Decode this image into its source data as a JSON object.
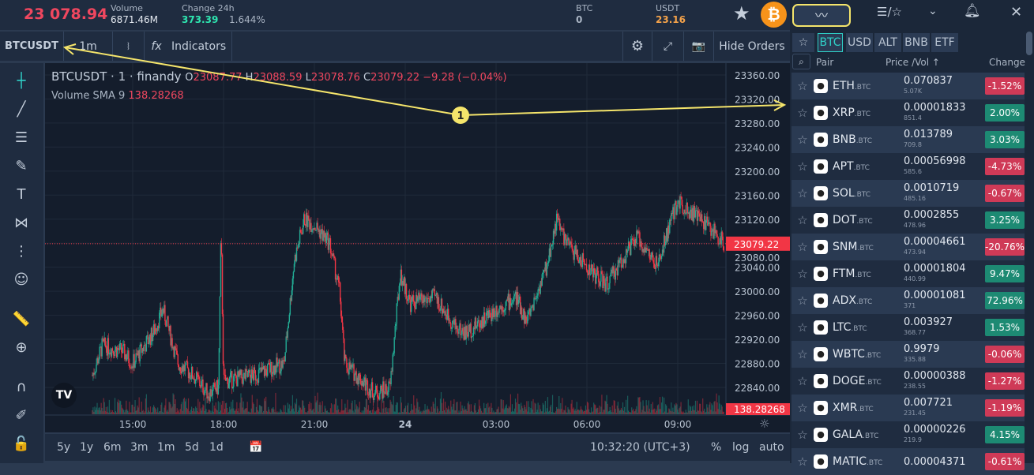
{
  "header": {
    "last_price": "23 078.94",
    "volume_label": "Volume",
    "volume": "6871.46M",
    "change_label": "Change 24h",
    "change_abs": "373.39",
    "change_pct": "1.644%",
    "btc_label": "BTC",
    "btc_balance": "0",
    "usdt_label": "USDT",
    "usdt_balance": "23.16"
  },
  "toolbar": {
    "symbol": "BTCUSDT",
    "interval": "1m",
    "indicators": "Indicators",
    "hide_orders": "Hide Orders"
  },
  "legend": {
    "title": "BTCUSDT · 1 · finandy",
    "o_label": "O",
    "o": "23087.77",
    "h_label": "H",
    "h": "23088.59",
    "l_label": "L",
    "l": "23078.76",
    "c_label": "C",
    "c": "23079.22",
    "chg": "−9.28 (−0.04%)",
    "vol_label": "Volume",
    "sma_label": "SMA 9",
    "vol_value": "138.28268"
  },
  "price_axis": [
    "23360.00",
    "23320.00",
    "23280.00",
    "23240.00",
    "23200.00",
    "23160.00",
    "23120.00",
    "23080.00",
    "23040.00",
    "23000.00",
    "22960.00",
    "22920.00",
    "22880.00",
    "22840.00"
  ],
  "price_tag": "23079.22",
  "volume_tag": "138.28268",
  "time_axis": [
    "15:00",
    "18:00",
    "21:00",
    "24",
    "03:00",
    "06:00",
    "09:00"
  ],
  "ranges": [
    "5y",
    "1y",
    "6m",
    "3m",
    "1m",
    "5d",
    "1d"
  ],
  "clock": "10:32:20 (UTC+3)",
  "scale_opts": [
    "%",
    "log",
    "auto"
  ],
  "annotation": {
    "marker": "1",
    "color": "#f5e56b"
  },
  "chart_data": {
    "type": "candlestick",
    "symbol": "BTCUSDT",
    "interval": "1m",
    "ylim": [
      22820,
      23370
    ],
    "price_path": [
      [
        "13:40",
        22860
      ],
      [
        "14:00",
        22910
      ],
      [
        "14:40",
        22900
      ],
      [
        "15:00",
        22880
      ],
      [
        "15:40",
        22930
      ],
      [
        "16:00",
        22970
      ],
      [
        "16:30",
        22880
      ],
      [
        "17:00",
        22860
      ],
      [
        "17:30",
        22830
      ],
      [
        "17:50",
        22840
      ],
      [
        "17:55",
        23100
      ],
      [
        "18:00",
        22850
      ],
      [
        "19:00",
        22860
      ],
      [
        "20:00",
        22880
      ],
      [
        "20:20",
        23050
      ],
      [
        "20:40",
        23120
      ],
      [
        "21:00",
        23110
      ],
      [
        "21:30",
        23080
      ],
      [
        "21:50",
        23000
      ],
      [
        "22:00",
        22880
      ],
      [
        "23:00",
        22830
      ],
      [
        "23:30",
        22840
      ],
      [
        "23:50",
        23030
      ],
      [
        "00:10",
        22980
      ],
      [
        "01:00",
        22990
      ],
      [
        "01:40",
        22940
      ],
      [
        "02:00",
        22930
      ],
      [
        "03:00",
        22970
      ],
      [
        "03:40",
        22990
      ],
      [
        "04:00",
        22950
      ],
      [
        "04:40",
        23040
      ],
      [
        "05:00",
        23120
      ],
      [
        "05:20",
        23080
      ],
      [
        "06:00",
        23040
      ],
      [
        "06:40",
        23010
      ],
      [
        "07:00",
        23040
      ],
      [
        "07:40",
        23090
      ],
      [
        "08:20",
        23040
      ],
      [
        "08:40",
        23100
      ],
      [
        "09:00",
        23150
      ],
      [
        "09:30",
        23130
      ],
      [
        "10:00",
        23110
      ],
      [
        "10:32",
        23079
      ]
    ],
    "last": 23079.22
  },
  "panel": {
    "tabs": [
      "BTC",
      "USD",
      "ALT",
      "BNB",
      "ETF"
    ],
    "col_pair": "Pair",
    "col_price": "Price /Vol ↑",
    "col_change": "Change",
    "quote": ".BTC",
    "rows": [
      {
        "sym": "ETH",
        "price": "0.070837",
        "vol": "5.07K",
        "chg": "-1.52%",
        "up": false
      },
      {
        "sym": "XRP",
        "price": "0.00001833",
        "vol": "851.4",
        "chg": "2.00%",
        "up": true
      },
      {
        "sym": "BNB",
        "price": "0.013789",
        "vol": "709.8",
        "chg": "3.03%",
        "up": true
      },
      {
        "sym": "APT",
        "price": "0.00056998",
        "vol": "585.6",
        "chg": "-4.73%",
        "up": false
      },
      {
        "sym": "SOL",
        "price": "0.0010719",
        "vol": "485.16",
        "chg": "-0.67%",
        "up": false
      },
      {
        "sym": "DOT",
        "price": "0.0002855",
        "vol": "478.96",
        "chg": "3.25%",
        "up": true
      },
      {
        "sym": "SNM",
        "price": "0.00004661",
        "vol": "473.94",
        "chg": "-20.76%",
        "up": false
      },
      {
        "sym": "FTM",
        "price": "0.00001804",
        "vol": "440.99",
        "chg": "9.47%",
        "up": true
      },
      {
        "sym": "ADX",
        "price": "0.00001081",
        "vol": "371",
        "chg": "72.96%",
        "up": true
      },
      {
        "sym": "LTC",
        "price": "0.003927",
        "vol": "368.77",
        "chg": "1.53%",
        "up": true
      },
      {
        "sym": "WBTC",
        "price": "0.9979",
        "vol": "335.88",
        "chg": "-0.06%",
        "up": false
      },
      {
        "sym": "DOGE",
        "price": "0.00000388",
        "vol": "238.55",
        "chg": "-1.27%",
        "up": false
      },
      {
        "sym": "XMR",
        "price": "0.007721",
        "vol": "231.45",
        "chg": "-1.19%",
        "up": false
      },
      {
        "sym": "GALA",
        "price": "0.00000226",
        "vol": "219.9",
        "chg": "4.15%",
        "up": true
      },
      {
        "sym": "MATIC",
        "price": "0.00004371",
        "vol": "",
        "chg": "-0.61%",
        "up": false
      }
    ]
  },
  "colors": {
    "up": "#1d8a73",
    "down": "#cf3a57",
    "accent": "#2fd0c8",
    "btc": "#f7931a"
  }
}
